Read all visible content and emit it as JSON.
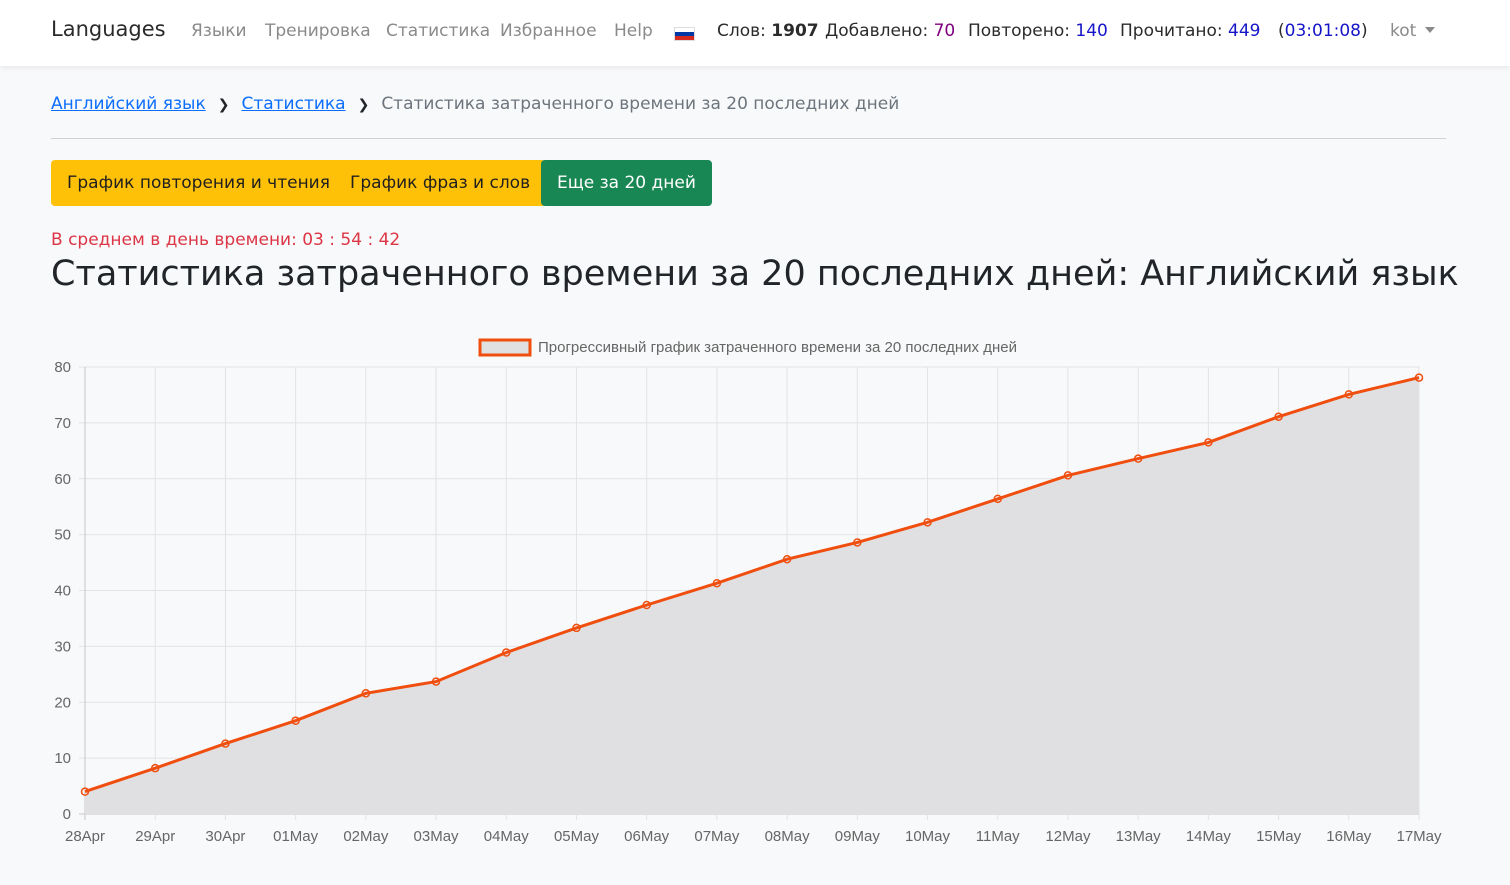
{
  "navbar": {
    "brand": "Languages",
    "links": [
      "Языки",
      "Тренировка",
      "Статистика",
      "Избранное",
      "Help"
    ],
    "words_label": "Слов:",
    "words_value": "1907",
    "added_label": "Добавлено:",
    "added_value": "70",
    "repeated_label": "Повторено:",
    "repeated_value": "140",
    "read_label": "Прочитано:",
    "read_value": "449",
    "timer_open": "(",
    "timer_value": "03:01:08",
    "timer_close": ")",
    "user": "kot"
  },
  "breadcrumb": {
    "items": [
      "Английский язык",
      "Статистика"
    ],
    "current": "Статистика затраченного времени за 20 последних дней"
  },
  "buttons": {
    "repeat_read": "График повторения и чтения",
    "phrases_words": "График фраз и слов",
    "more_days": "Еще за 20 дней"
  },
  "average": "В среднем в день времени: 03 : 54 : 42",
  "title": "Статистика затраченного времени за 20 последних дней: Английский язык",
  "colors": {
    "line": "#f04e0f",
    "fill": "#e0e0e2",
    "warning": "#ffc107",
    "success": "#198754",
    "danger": "#dc3545"
  },
  "chart_data": {
    "type": "area",
    "legend_position": "top",
    "grid": true,
    "ylim": [
      0,
      80
    ],
    "yticks": [
      0,
      10,
      20,
      30,
      40,
      50,
      60,
      70,
      80
    ],
    "categories": [
      "28Apr",
      "29Apr",
      "30Apr",
      "01May",
      "02May",
      "03May",
      "04May",
      "05May",
      "06May",
      "07May",
      "08May",
      "09May",
      "10May",
      "11May",
      "12May",
      "13May",
      "14May",
      "15May",
      "16May",
      "17May"
    ],
    "series": [
      {
        "name": "Прогрессивный график затраченного времени за 20 последних дней",
        "values": [
          4,
          8.2,
          12.6,
          16.7,
          21.6,
          23.7,
          28.9,
          33.3,
          37.4,
          41.3,
          45.6,
          48.6,
          52.2,
          56.4,
          60.6,
          63.6,
          66.5,
          71.1,
          75.1,
          78.1
        ]
      }
    ]
  }
}
